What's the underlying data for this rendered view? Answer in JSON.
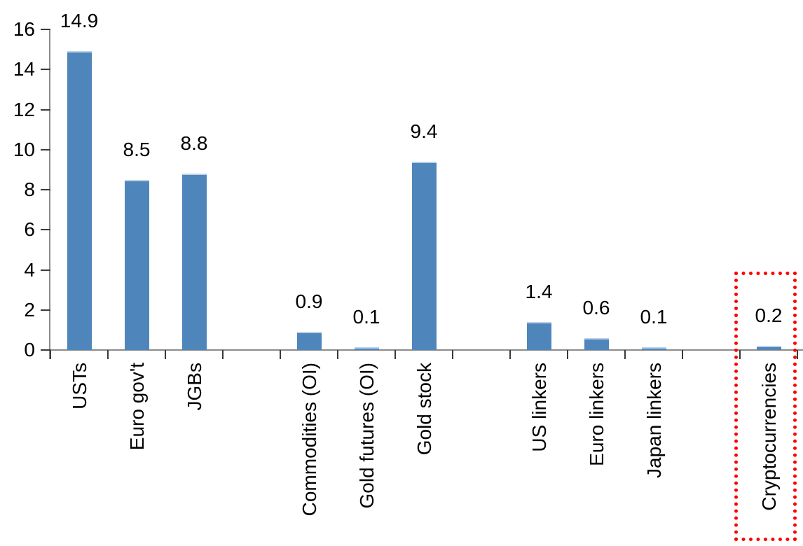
{
  "chart_data": {
    "type": "bar",
    "title": "",
    "xlabel": "",
    "ylabel": "",
    "categories": [
      "USTs",
      "Euro gov't",
      "JGBs",
      "Commodities (OI)",
      "Gold futures (OI)",
      "Gold stock",
      "US linkers",
      "Euro linkers",
      "Japan linkers",
      "Cryptocurrencies"
    ],
    "values": [
      14.9,
      8.5,
      8.8,
      0.9,
      0.1,
      9.4,
      1.4,
      0.6,
      0.1,
      0.2
    ],
    "data_labels": [
      "14.9",
      "8.5",
      "8.8",
      "0.9",
      "0.1",
      "9.4",
      "1.4",
      "0.6",
      "0.1",
      "0.2"
    ],
    "slot_index": [
      0,
      1,
      2,
      4,
      5,
      6,
      8,
      9,
      10,
      12
    ],
    "total_slots": 13,
    "ylim": [
      0,
      16
    ],
    "yticks": [
      16,
      14,
      12,
      10,
      8,
      6,
      4,
      2,
      0
    ],
    "grid": false,
    "legend": false,
    "bar_color": "#4E86BC",
    "bar_edge_color": "#BDD0E6",
    "axis_color": "#8C8C8C",
    "tick_color": "#3A3A3A",
    "text_color": "#000000",
    "highlight": {
      "category": "Cryptocurrencies",
      "style": "dotted-box",
      "color": "#FF0000"
    }
  }
}
